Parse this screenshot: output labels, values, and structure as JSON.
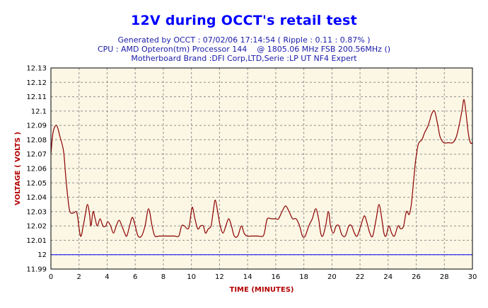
{
  "header": {
    "title": "12V during OCCT's retail test",
    "line1": "Generated by OCCT : 07/02/06 17:14:54 ( Ripple : 0.11 : 0.87% )",
    "line2": "CPU : AMD Opteron(tm) Processor 144    @ 1805.06 MHz FSB 200.56MHz ()",
    "line3": "Motherboard Brand :DFI Corp,LTD,Serie :LP UT NF4 Expert"
  },
  "colors": {
    "plot_bg": "#fcf6e4",
    "line": "#8b0000",
    "reference": "#0000ff",
    "grid": "#909090",
    "axis_label": "#b30000",
    "title": "#0000ff",
    "subtitle": "#1a1aa8"
  },
  "chart_data": {
    "type": "line",
    "title": "12V during OCCT's retail test",
    "xlabel": "TIME (MINUTES)",
    "ylabel": "VOLTAGE ( VOLTS )",
    "xlim": [
      0,
      30
    ],
    "ylim": [
      11.99,
      12.13
    ],
    "grid": true,
    "x_ticks": [
      0,
      2,
      4,
      6,
      8,
      10,
      12,
      14,
      16,
      18,
      20,
      22,
      24,
      26,
      28,
      30
    ],
    "y_ticks": [
      11.99,
      12,
      12.01,
      12.02,
      12.03,
      12.04,
      12.05,
      12.06,
      12.07,
      12.08,
      12.09,
      12.1,
      12.11,
      12.12,
      12.13
    ],
    "x_tick_labels": [
      "0",
      "2",
      "4",
      "6",
      "8",
      "10",
      "12",
      "14",
      "16",
      "18",
      "20",
      "22",
      "24",
      "26",
      "28",
      "30"
    ],
    "y_tick_labels": [
      "11.99",
      "12",
      "12.01",
      "12.02",
      "12.03",
      "12.04",
      "12.05",
      "12.06",
      "12.07",
      "12.08",
      "12.09",
      "12.1",
      "12.11",
      "12.12",
      "12.13"
    ],
    "series": [
      {
        "values": [
          [
            0,
            12.07
          ],
          [
            0.15,
            12.085
          ],
          [
            0.4,
            12.09
          ],
          [
            0.65,
            12.082
          ],
          [
            0.9,
            12.072
          ],
          [
            1.05,
            12.055
          ],
          [
            1.2,
            12.04
          ],
          [
            1.35,
            12.03
          ],
          [
            1.6,
            12.029
          ],
          [
            1.85,
            12.029
          ],
          [
            2.1,
            12.013
          ],
          [
            2.3,
            12.02
          ],
          [
            2.45,
            12.028
          ],
          [
            2.6,
            12.035
          ],
          [
            2.75,
            12.028
          ],
          [
            2.85,
            12.02
          ],
          [
            3.0,
            12.03
          ],
          [
            3.15,
            12.025
          ],
          [
            3.3,
            12.02
          ],
          [
            3.5,
            12.025
          ],
          [
            3.7,
            12.02
          ],
          [
            3.9,
            12.02
          ],
          [
            4.05,
            12.023
          ],
          [
            4.25,
            12.02
          ],
          [
            4.45,
            12.015
          ],
          [
            4.65,
            12.02
          ],
          [
            4.85,
            12.024
          ],
          [
            5.05,
            12.02
          ],
          [
            5.25,
            12.015
          ],
          [
            5.4,
            12.013
          ],
          [
            5.6,
            12.02
          ],
          [
            5.8,
            12.026
          ],
          [
            6.0,
            12.02
          ],
          [
            6.2,
            12.013
          ],
          [
            6.45,
            12.013
          ],
          [
            6.7,
            12.02
          ],
          [
            6.95,
            12.032
          ],
          [
            7.2,
            12.02
          ],
          [
            7.4,
            12.013
          ],
          [
            7.7,
            12.013
          ],
          [
            8.0,
            12.013
          ],
          [
            8.4,
            12.013
          ],
          [
            8.8,
            12.013
          ],
          [
            9.1,
            12.013
          ],
          [
            9.3,
            12.02
          ],
          [
            9.5,
            12.02
          ],
          [
            9.7,
            12.018
          ],
          [
            9.85,
            12.02
          ],
          [
            10.05,
            12.033
          ],
          [
            10.25,
            12.025
          ],
          [
            10.45,
            12.018
          ],
          [
            10.65,
            12.02
          ],
          [
            10.85,
            12.02
          ],
          [
            11.0,
            12.015
          ],
          [
            11.2,
            12.018
          ],
          [
            11.4,
            12.02
          ],
          [
            11.55,
            12.03
          ],
          [
            11.7,
            12.038
          ],
          [
            11.9,
            12.028
          ],
          [
            12.05,
            12.02
          ],
          [
            12.25,
            12.015
          ],
          [
            12.45,
            12.02
          ],
          [
            12.65,
            12.025
          ],
          [
            12.85,
            12.02
          ],
          [
            13.05,
            12.013
          ],
          [
            13.3,
            12.013
          ],
          [
            13.55,
            12.02
          ],
          [
            13.75,
            12.015
          ],
          [
            13.95,
            12.013
          ],
          [
            14.3,
            12.013
          ],
          [
            14.7,
            12.013
          ],
          [
            15.1,
            12.013
          ],
          [
            15.25,
            12.018
          ],
          [
            15.4,
            12.025
          ],
          [
            15.7,
            12.025
          ],
          [
            16.0,
            12.025
          ],
          [
            16.2,
            12.025
          ],
          [
            16.45,
            12.03
          ],
          [
            16.7,
            12.034
          ],
          [
            16.95,
            12.03
          ],
          [
            17.2,
            12.025
          ],
          [
            17.45,
            12.025
          ],
          [
            17.7,
            12.02
          ],
          [
            17.9,
            12.013
          ],
          [
            18.1,
            12.013
          ],
          [
            18.35,
            12.02
          ],
          [
            18.6,
            12.025
          ],
          [
            18.85,
            12.032
          ],
          [
            19.05,
            12.025
          ],
          [
            19.2,
            12.015
          ],
          [
            19.35,
            12.013
          ],
          [
            19.55,
            12.02
          ],
          [
            19.75,
            12.03
          ],
          [
            19.9,
            12.02
          ],
          [
            20.1,
            12.015
          ],
          [
            20.3,
            12.02
          ],
          [
            20.5,
            12.02
          ],
          [
            20.7,
            12.014
          ],
          [
            20.95,
            12.013
          ],
          [
            21.2,
            12.02
          ],
          [
            21.4,
            12.02
          ],
          [
            21.6,
            12.015
          ],
          [
            21.8,
            12.013
          ],
          [
            22.05,
            12.02
          ],
          [
            22.3,
            12.027
          ],
          [
            22.5,
            12.022
          ],
          [
            22.7,
            12.015
          ],
          [
            22.9,
            12.013
          ],
          [
            23.15,
            12.025
          ],
          [
            23.35,
            12.035
          ],
          [
            23.55,
            12.025
          ],
          [
            23.7,
            12.015
          ],
          [
            23.85,
            12.013
          ],
          [
            24.05,
            12.02
          ],
          [
            24.25,
            12.015
          ],
          [
            24.45,
            12.013
          ],
          [
            24.7,
            12.02
          ],
          [
            24.9,
            12.018
          ],
          [
            25.1,
            12.02
          ],
          [
            25.3,
            12.03
          ],
          [
            25.5,
            12.028
          ],
          [
            25.65,
            12.035
          ],
          [
            25.8,
            12.05
          ],
          [
            25.95,
            12.065
          ],
          [
            26.15,
            12.077
          ],
          [
            26.4,
            12.08
          ],
          [
            26.6,
            12.085
          ],
          [
            26.85,
            12.09
          ],
          [
            27.1,
            12.098
          ],
          [
            27.3,
            12.1
          ],
          [
            27.5,
            12.092
          ],
          [
            27.7,
            12.082
          ],
          [
            27.95,
            12.078
          ],
          [
            28.3,
            12.078
          ],
          [
            28.6,
            12.078
          ],
          [
            28.85,
            12.082
          ],
          [
            29.05,
            12.09
          ],
          [
            29.25,
            12.1
          ],
          [
            29.4,
            12.108
          ],
          [
            29.55,
            12.098
          ],
          [
            29.7,
            12.085
          ],
          [
            29.85,
            12.078
          ],
          [
            30.0,
            12.078
          ]
        ]
      }
    ],
    "reference_line": 12
  }
}
